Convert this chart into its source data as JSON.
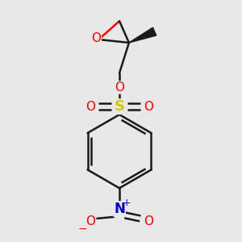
{
  "background_color": "#e8e8e8",
  "line_color": "#1a1a1a",
  "bond_lw": 1.8,
  "colors": {
    "O": "#ff0000",
    "S": "#cccc00",
    "N": "#0000cc",
    "C": "#1a1a1a"
  }
}
